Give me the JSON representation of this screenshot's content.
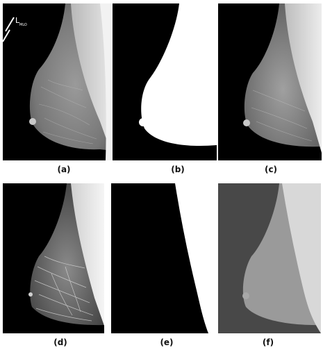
{
  "figure": {
    "panels": [
      {
        "caption": "(a)",
        "subject": "original mammogram, left view"
      },
      {
        "caption": "(b)",
        "subject": "binary breast-region mask"
      },
      {
        "caption": "(c)",
        "subject": "masked breast image"
      },
      {
        "caption": "(d)",
        "subject": "contrast-enhanced breast image"
      },
      {
        "caption": "(e)",
        "subject": "binary pectoral-muscle mask"
      },
      {
        "caption": "(f)",
        "subject": "segmented regions (background / breast / pectoral)"
      }
    ],
    "marker_text": "L",
    "marker_subtext": "MLO",
    "colors": {
      "background": "#000000",
      "mask": "#ffffff",
      "segment_background": "#484848",
      "segment_breast": "#9a9a9a",
      "segment_muscle": "#d8d8d8"
    }
  }
}
